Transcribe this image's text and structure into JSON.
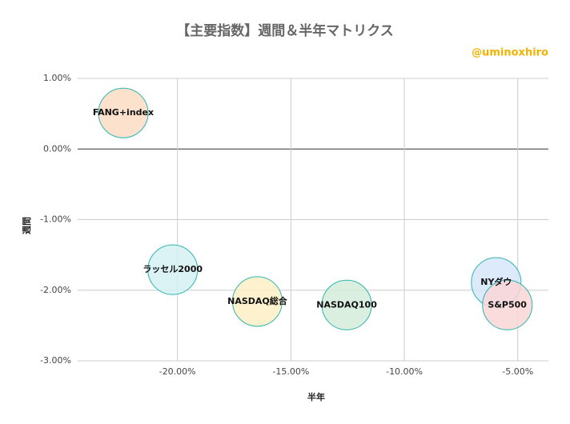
{
  "chart_data": {
    "type": "scatter",
    "title": "【主要指数】週間＆半年マトリクス",
    "subtitle": "@uminoxhiro",
    "x_label": "半年",
    "y_label": "週間",
    "labels": [
      "FANG+index",
      "ラッセル2000",
      "NASDAQ総合",
      "NASDAQ100",
      "NYダウ",
      "S&P500"
    ],
    "x": [
      -22.39,
      -20.21,
      -16.48,
      -12.54,
      -5.95,
      -5.46
    ],
    "y": [
      0.51,
      -1.71,
      -2.16,
      -2.21,
      -1.89,
      -2.21
    ],
    "colors": [
      "#fcdcc4",
      "#d6f1f3",
      "#fdf0c4",
      "#d3ecd9",
      "#d6e6fb",
      "#f9d6d6"
    ],
    "xlim": [
      -24.4,
      -3.65
    ],
    "ylim": [
      -3,
      1
    ],
    "xticks": [
      {
        "value": -20,
        "label": "-20.00%"
      },
      {
        "value": -15,
        "label": "-15.00%"
      },
      {
        "value": -10,
        "label": "-10.00%"
      },
      {
        "value": -5,
        "label": "-5.00%"
      }
    ],
    "yticks": [
      {
        "value": 1,
        "label": "1.00%"
      },
      {
        "value": 0,
        "label": "0.00%"
      },
      {
        "value": -1,
        "label": "-1.00%"
      },
      {
        "value": -2,
        "label": "-2.00%"
      },
      {
        "value": -3,
        "label": "-3.00%"
      }
    ],
    "grid": true
  }
}
